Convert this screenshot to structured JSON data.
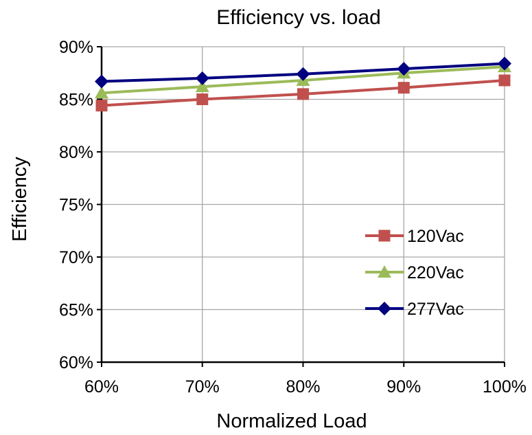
{
  "chart_data": {
    "type": "line",
    "title": "Efficiency vs. load",
    "xlabel": "Normalized Load",
    "ylabel": "Efficiency",
    "x": [
      60,
      70,
      80,
      90,
      100
    ],
    "x_tick_labels": [
      "60%",
      "70%",
      "80%",
      "90%",
      "100%"
    ],
    "xlim": [
      60,
      100
    ],
    "ylim": [
      60,
      90
    ],
    "y_ticks": [
      60,
      65,
      70,
      75,
      80,
      85,
      90
    ],
    "y_tick_labels": [
      "60%",
      "65%",
      "70%",
      "75%",
      "80%",
      "85%",
      "90%"
    ],
    "grid": true,
    "legend_position": "bottom-right",
    "series": [
      {
        "name": "120Vac",
        "marker": "square",
        "color": "#C0504D",
        "values": [
          84.4,
          85.0,
          85.5,
          86.1,
          86.8
        ]
      },
      {
        "name": "220Vac",
        "marker": "triangle",
        "color": "#9BBB59",
        "values": [
          85.6,
          86.2,
          86.8,
          87.5,
          88.1
        ]
      },
      {
        "name": "277Vac",
        "marker": "diamond",
        "color": "#000080",
        "values": [
          86.7,
          87.0,
          87.4,
          87.9,
          88.4
        ]
      }
    ]
  }
}
